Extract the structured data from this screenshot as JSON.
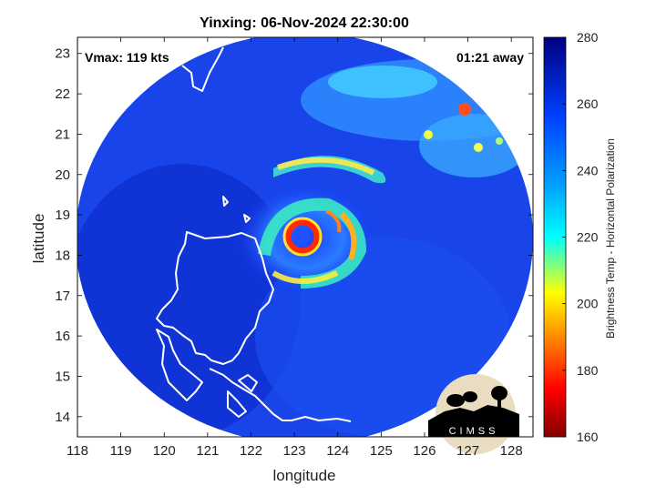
{
  "chart_data": {
    "type": "heatmap",
    "title": "Yinxing: 06-Nov-2024 22:30:00",
    "xlabel": "longitude",
    "ylabel": "latitude",
    "xlim": [
      118,
      128.5
    ],
    "ylim": [
      13.5,
      23.4
    ],
    "x_ticks": [
      "118",
      "119",
      "120",
      "121",
      "122",
      "123",
      "124",
      "125",
      "126",
      "127",
      "128"
    ],
    "y_ticks": [
      "14",
      "15",
      "16",
      "17",
      "18",
      "19",
      "20",
      "21",
      "22",
      "23"
    ],
    "annotations": {
      "vmax": "Vmax: 119 kts",
      "time_away": "01:21 away"
    },
    "storm_center": {
      "lon": 123.2,
      "lat": 18.4
    },
    "colorbar": {
      "label": "Brightness Temp - Horizontal Polarization",
      "range": [
        160,
        280
      ],
      "ticks": [
        "160",
        "180",
        "200",
        "220",
        "240",
        "260",
        "280"
      ],
      "colormap": "jet"
    },
    "logo_text": "CIMSS"
  }
}
